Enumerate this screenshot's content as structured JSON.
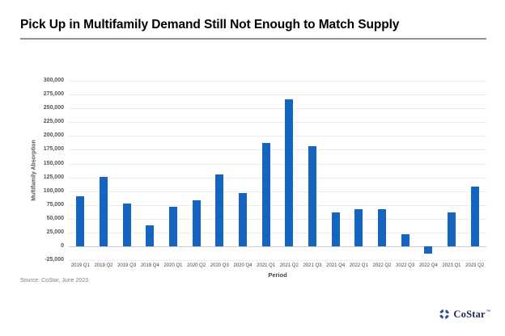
{
  "title": "Pick Up in Multifamily Demand Still Not Enough to Match Supply",
  "source_note": "Source: CoStar, June 2023",
  "logo": {
    "text": "CoStar",
    "tm": "™"
  },
  "chart_data": {
    "type": "bar",
    "title": "",
    "xlabel": "Period",
    "ylabel": "Multifamily Absorption",
    "categories": [
      "2019 Q1",
      "2019 Q2",
      "2019 Q3",
      "2019 Q4",
      "2020 Q1",
      "2020 Q2",
      "2020 Q3",
      "2020 Q4",
      "2021 Q1",
      "2021 Q2",
      "2021 Q3",
      "2021 Q4",
      "2022 Q1",
      "2022 Q2",
      "2022 Q3",
      "2022 Q4",
      "2023 Q1",
      "2023 Q2"
    ],
    "values": [
      90000,
      126000,
      77000,
      38000,
      72000,
      84000,
      130000,
      96000,
      188000,
      266000,
      182000,
      61000,
      68000,
      67000,
      22000,
      -13000,
      61000,
      108000
    ],
    "ylim": [
      -25000,
      300000
    ],
    "yticks": [
      300000,
      275000,
      250000,
      225000,
      200000,
      175000,
      150000,
      125000,
      100000,
      75000,
      50000,
      25000,
      0,
      -25000
    ],
    "grid": true,
    "legend": "none",
    "bar_color": "#1565c0"
  }
}
